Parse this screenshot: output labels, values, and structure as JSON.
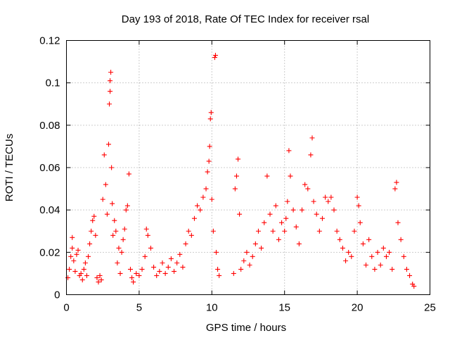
{
  "chart_data": {
    "type": "scatter",
    "title": "Day 193 of 2018, Rate Of TEC Index for receiver rsal",
    "xlabel": "GPS time / hours",
    "ylabel": "ROTI / TECUs",
    "xlim": [
      0,
      25
    ],
    "ylim": [
      0,
      0.12
    ],
    "x_ticks": [
      {
        "value": 0,
        "label": "0"
      },
      {
        "value": 5,
        "label": "5"
      },
      {
        "value": 10,
        "label": "10"
      },
      {
        "value": 15,
        "label": "15"
      },
      {
        "value": 20,
        "label": "20"
      },
      {
        "value": 25,
        "label": "25"
      }
    ],
    "y_ticks": [
      {
        "value": 0,
        "label": "0"
      },
      {
        "value": 0.02,
        "label": "0.02"
      },
      {
        "value": 0.04,
        "label": "0.04"
      },
      {
        "value": 0.06,
        "label": "0.06"
      },
      {
        "value": 0.08,
        "label": "0.08"
      },
      {
        "value": 0.1,
        "label": "0.1"
      },
      {
        "value": 0.12,
        "label": "0.12"
      }
    ],
    "grid": true,
    "marker": "+",
    "color": "#ff0000",
    "series": [
      {
        "name": "ROTI",
        "points": [
          [
            0.1,
            0.008
          ],
          [
            0.2,
            0.012
          ],
          [
            0.3,
            0.018
          ],
          [
            0.4,
            0.022
          ],
          [
            0.4,
            0.027
          ],
          [
            0.5,
            0.016
          ],
          [
            0.6,
            0.011
          ],
          [
            0.7,
            0.019
          ],
          [
            0.8,
            0.021
          ],
          [
            0.9,
            0.009
          ],
          [
            1.0,
            0.01
          ],
          [
            1.1,
            0.007
          ],
          [
            1.2,
            0.012
          ],
          [
            1.3,
            0.015
          ],
          [
            1.4,
            0.009
          ],
          [
            1.5,
            0.018
          ],
          [
            1.6,
            0.024
          ],
          [
            1.7,
            0.03
          ],
          [
            1.8,
            0.035
          ],
          [
            1.9,
            0.037
          ],
          [
            2.0,
            0.028
          ],
          [
            2.1,
            0.008
          ],
          [
            2.2,
            0.006
          ],
          [
            2.3,
            0.009
          ],
          [
            2.4,
            0.007
          ],
          [
            2.5,
            0.045
          ],
          [
            2.6,
            0.066
          ],
          [
            2.7,
            0.052
          ],
          [
            2.8,
            0.038
          ],
          [
            2.9,
            0.071
          ],
          [
            2.95,
            0.09
          ],
          [
            3.0,
            0.096
          ],
          [
            3.0,
            0.101
          ],
          [
            3.05,
            0.105
          ],
          [
            3.1,
            0.06
          ],
          [
            3.15,
            0.043
          ],
          [
            3.2,
            0.028
          ],
          [
            3.3,
            0.035
          ],
          [
            3.4,
            0.03
          ],
          [
            3.5,
            0.015
          ],
          [
            3.6,
            0.022
          ],
          [
            3.7,
            0.01
          ],
          [
            3.8,
            0.02
          ],
          [
            3.9,
            0.026
          ],
          [
            4.0,
            0.031
          ],
          [
            4.1,
            0.04
          ],
          [
            4.2,
            0.042
          ],
          [
            4.3,
            0.057
          ],
          [
            4.4,
            0.012
          ],
          [
            4.5,
            0.008
          ],
          [
            4.6,
            0.006
          ],
          [
            4.8,
            0.01
          ],
          [
            5.0,
            0.009
          ],
          [
            5.2,
            0.012
          ],
          [
            5.4,
            0.018
          ],
          [
            5.5,
            0.031
          ],
          [
            5.6,
            0.028
          ],
          [
            5.8,
            0.022
          ],
          [
            6.0,
            0.013
          ],
          [
            6.2,
            0.009
          ],
          [
            6.4,
            0.011
          ],
          [
            6.6,
            0.015
          ],
          [
            6.8,
            0.01
          ],
          [
            7.0,
            0.013
          ],
          [
            7.2,
            0.017
          ],
          [
            7.4,
            0.011
          ],
          [
            7.6,
            0.015
          ],
          [
            7.8,
            0.019
          ],
          [
            8.0,
            0.013
          ],
          [
            8.2,
            0.024
          ],
          [
            8.4,
            0.03
          ],
          [
            8.6,
            0.028
          ],
          [
            8.8,
            0.036
          ],
          [
            9.0,
            0.042
          ],
          [
            9.2,
            0.04
          ],
          [
            9.4,
            0.046
          ],
          [
            9.6,
            0.05
          ],
          [
            9.7,
            0.058
          ],
          [
            9.8,
            0.063
          ],
          [
            9.85,
            0.07
          ],
          [
            9.9,
            0.083
          ],
          [
            9.95,
            0.086
          ],
          [
            10.0,
            0.045
          ],
          [
            10.1,
            0.03
          ],
          [
            10.2,
            0.112
          ],
          [
            10.25,
            0.113
          ],
          [
            10.3,
            0.02
          ],
          [
            10.4,
            0.012
          ],
          [
            10.5,
            0.009
          ],
          [
            11.5,
            0.01
          ],
          [
            11.6,
            0.05
          ],
          [
            11.7,
            0.056
          ],
          [
            11.8,
            0.064
          ],
          [
            11.9,
            0.038
          ],
          [
            12.0,
            0.012
          ],
          [
            12.2,
            0.016
          ],
          [
            12.4,
            0.02
          ],
          [
            12.6,
            0.014
          ],
          [
            12.8,
            0.018
          ],
          [
            13.0,
            0.024
          ],
          [
            13.2,
            0.03
          ],
          [
            13.4,
            0.022
          ],
          [
            13.6,
            0.034
          ],
          [
            13.8,
            0.056
          ],
          [
            14.0,
            0.038
          ],
          [
            14.2,
            0.03
          ],
          [
            14.4,
            0.042
          ],
          [
            14.6,
            0.026
          ],
          [
            14.8,
            0.034
          ],
          [
            15.0,
            0.03
          ],
          [
            15.1,
            0.036
          ],
          [
            15.2,
            0.044
          ],
          [
            15.3,
            0.068
          ],
          [
            15.4,
            0.056
          ],
          [
            15.6,
            0.04
          ],
          [
            15.8,
            0.032
          ],
          [
            16.0,
            0.024
          ],
          [
            16.2,
            0.04
          ],
          [
            16.4,
            0.052
          ],
          [
            16.6,
            0.05
          ],
          [
            16.8,
            0.066
          ],
          [
            16.9,
            0.074
          ],
          [
            17.0,
            0.044
          ],
          [
            17.2,
            0.038
          ],
          [
            17.4,
            0.03
          ],
          [
            17.6,
            0.036
          ],
          [
            17.8,
            0.046
          ],
          [
            18.0,
            0.044
          ],
          [
            18.2,
            0.046
          ],
          [
            18.4,
            0.04
          ],
          [
            18.6,
            0.03
          ],
          [
            18.8,
            0.026
          ],
          [
            19.0,
            0.022
          ],
          [
            19.2,
            0.016
          ],
          [
            19.4,
            0.02
          ],
          [
            19.6,
            0.018
          ],
          [
            19.8,
            0.03
          ],
          [
            20.0,
            0.046
          ],
          [
            20.1,
            0.042
          ],
          [
            20.2,
            0.034
          ],
          [
            20.4,
            0.024
          ],
          [
            20.6,
            0.014
          ],
          [
            20.8,
            0.026
          ],
          [
            21.0,
            0.018
          ],
          [
            21.2,
            0.012
          ],
          [
            21.4,
            0.02
          ],
          [
            21.6,
            0.014
          ],
          [
            21.8,
            0.022
          ],
          [
            22.0,
            0.018
          ],
          [
            22.2,
            0.02
          ],
          [
            22.4,
            0.012
          ],
          [
            22.6,
            0.05
          ],
          [
            22.7,
            0.053
          ],
          [
            22.8,
            0.034
          ],
          [
            23.0,
            0.026
          ],
          [
            23.2,
            0.018
          ],
          [
            23.4,
            0.012
          ],
          [
            23.6,
            0.009
          ],
          [
            23.8,
            0.005
          ],
          [
            23.9,
            0.004
          ]
        ]
      }
    ]
  }
}
